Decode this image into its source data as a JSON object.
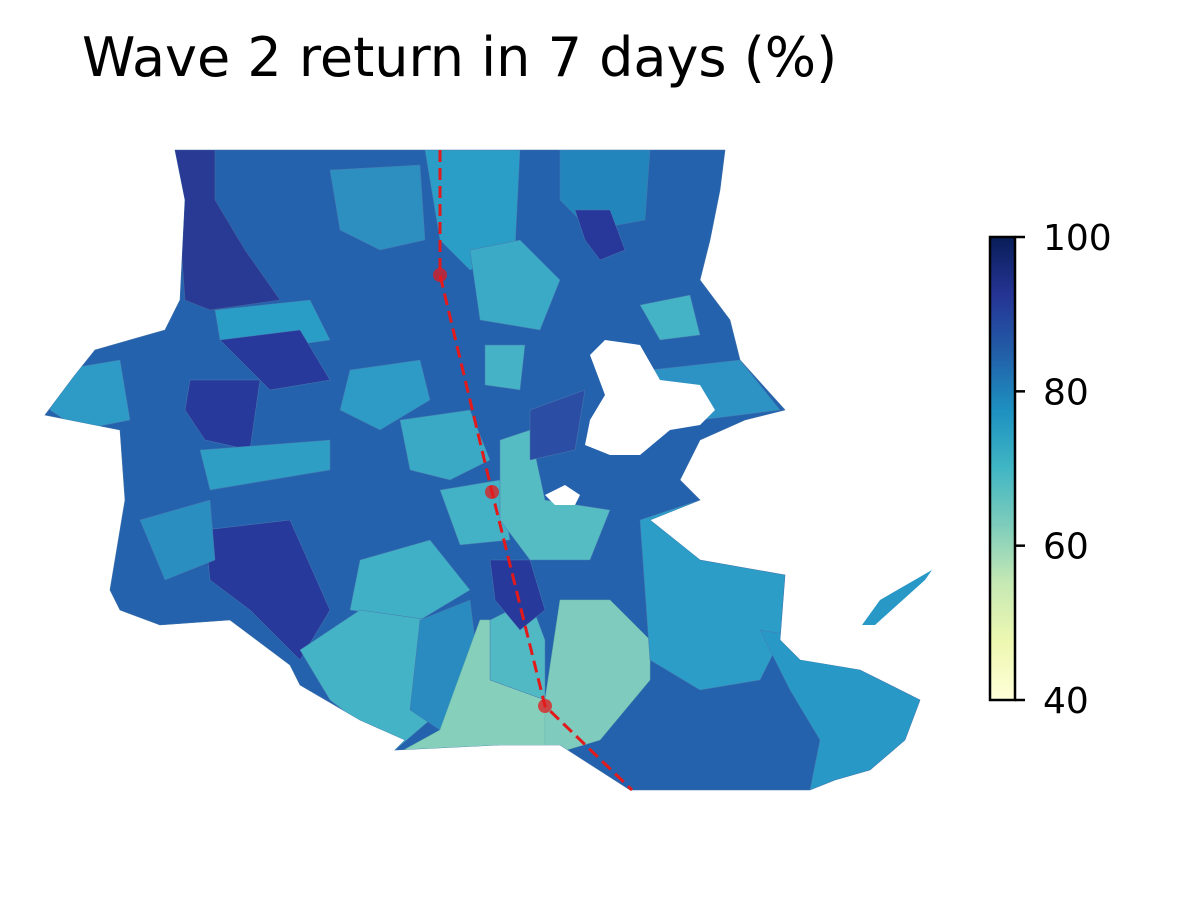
{
  "title": "Wave 2 return in 7 days (%)",
  "colorbar": {
    "min": 40,
    "max": 100,
    "ticks": [
      40,
      60,
      80,
      100
    ],
    "colormap": "YlGnBu",
    "stops": [
      {
        "v": 40,
        "c": "#ffffd9"
      },
      {
        "v": 47.5,
        "c": "#edf8b1"
      },
      {
        "v": 55,
        "c": "#c7e9b4"
      },
      {
        "v": 62.5,
        "c": "#7fcdbb"
      },
      {
        "v": 70,
        "c": "#41b6c4"
      },
      {
        "v": 77.5,
        "c": "#1d91c0"
      },
      {
        "v": 85,
        "c": "#225ea8"
      },
      {
        "v": 92.5,
        "c": "#253494"
      },
      {
        "v": 100,
        "c": "#081d58"
      }
    ]
  },
  "track": {
    "color": "#e31a1c",
    "style": "dashed",
    "points": 3
  }
}
